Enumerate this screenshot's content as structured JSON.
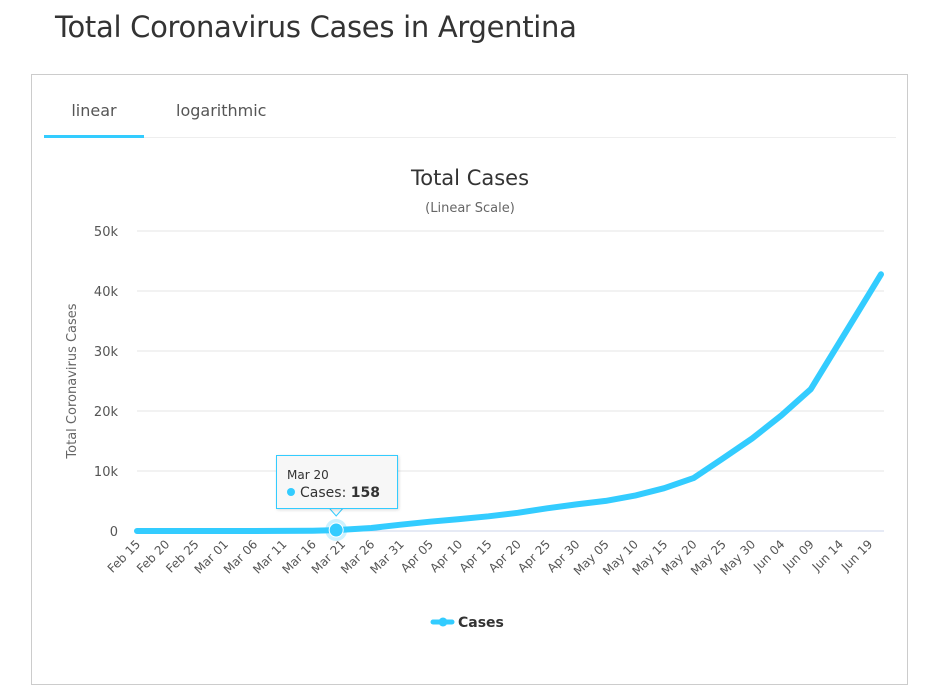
{
  "page": {
    "title": "Total Coronavirus Cases in Argentina"
  },
  "tabs": [
    {
      "label": "linear",
      "active": true
    },
    {
      "label": "logarithmic",
      "active": false
    }
  ],
  "tooltip": {
    "date": "Mar 20",
    "series": "Cases",
    "separator": ":",
    "value": "158"
  },
  "colors": {
    "accent": "#33ccff",
    "grid": "#e6e6e6",
    "axis": "#ccd6eb",
    "text": "#333333"
  },
  "chart_data": {
    "type": "line",
    "title": "Total Cases",
    "subtitle": "(Linear Scale)",
    "xlabel": "",
    "ylabel": "Total Coronavirus Cases",
    "ylim": [
      0,
      50000
    ],
    "yticks": [
      0,
      10000,
      20000,
      30000,
      40000,
      50000
    ],
    "ytick_labels": [
      "0",
      "10k",
      "20k",
      "30k",
      "40k",
      "50k"
    ],
    "xtick_labels": [
      "Feb 15",
      "Feb 20",
      "Feb 25",
      "Mar 01",
      "Mar 06",
      "Mar 11",
      "Mar 16",
      "Mar 21",
      "Mar 26",
      "Mar 31",
      "Apr 05",
      "Apr 10",
      "Apr 15",
      "Apr 20",
      "Apr 25",
      "Apr 30",
      "May 05",
      "May 10",
      "May 15",
      "May 20",
      "May 25",
      "May 30",
      "Jun 04",
      "Jun 09",
      "Jun 14",
      "Jun 19"
    ],
    "x_day_range": [
      0,
      127
    ],
    "grid": true,
    "legend": {
      "position": "bottom-center",
      "entries": [
        "Cases"
      ]
    },
    "series": [
      {
        "name": "Cases",
        "points": [
          {
            "date": "Feb 15",
            "day": 0,
            "value": 0
          },
          {
            "date": "Feb 25",
            "day": 10,
            "value": 0
          },
          {
            "date": "Mar 06",
            "day": 20,
            "value": 8
          },
          {
            "date": "Mar 11",
            "day": 25,
            "value": 19
          },
          {
            "date": "Mar 16",
            "day": 30,
            "value": 56
          },
          {
            "date": "Mar 20",
            "day": 34,
            "value": 158
          },
          {
            "date": "Mar 26",
            "day": 40,
            "value": 502
          },
          {
            "date": "Mar 31",
            "day": 45,
            "value": 1054
          },
          {
            "date": "Apr 05",
            "day": 50,
            "value": 1554
          },
          {
            "date": "Apr 10",
            "day": 55,
            "value": 1975
          },
          {
            "date": "Apr 15",
            "day": 60,
            "value": 2443
          },
          {
            "date": "Apr 20",
            "day": 65,
            "value": 3031
          },
          {
            "date": "Apr 25",
            "day": 70,
            "value": 3780
          },
          {
            "date": "Apr 30",
            "day": 75,
            "value": 4428
          },
          {
            "date": "May 05",
            "day": 80,
            "value": 5020
          },
          {
            "date": "May 10",
            "day": 85,
            "value": 5900
          },
          {
            "date": "May 15",
            "day": 90,
            "value": 7134
          },
          {
            "date": "May 20",
            "day": 95,
            "value": 8809
          },
          {
            "date": "May 25",
            "day": 100,
            "value": 12076
          },
          {
            "date": "May 30",
            "day": 105,
            "value": 15419
          },
          {
            "date": "Jun 04",
            "day": 110,
            "value": 19268
          },
          {
            "date": "Jun 09",
            "day": 115,
            "value": 23620
          },
          {
            "date": "Jun 14",
            "day": 120,
            "value": 31577
          },
          {
            "date": "Jun 19",
            "day": 125,
            "value": 39570
          },
          {
            "date": "Jun 21",
            "day": 127,
            "value": 42785
          }
        ]
      }
    ]
  }
}
